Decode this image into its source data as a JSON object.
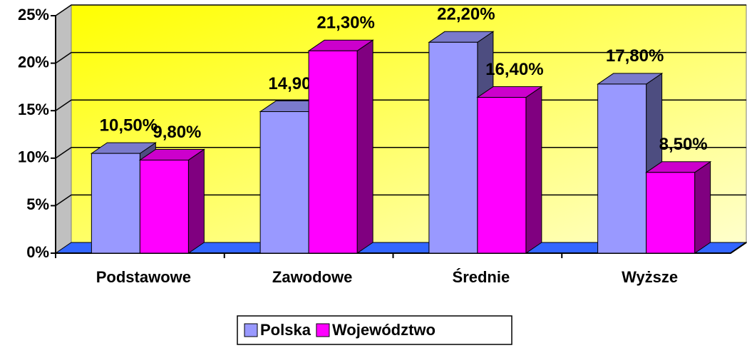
{
  "chart_data": {
    "type": "bar3d",
    "categories": [
      "Podstawowe",
      "Zawodowe",
      "Średnie",
      "Wyższe"
    ],
    "series": [
      {
        "name": "Polska",
        "color": "#9999ff",
        "values": [
          10.5,
          14.9,
          22.2,
          17.8
        ],
        "value_labels": [
          "10,50%",
          "14,90%",
          "22,20%",
          "17,80%"
        ]
      },
      {
        "name": "Województwo",
        "color": "#ff00ff",
        "values": [
          9.8,
          21.3,
          16.4,
          8.5
        ],
        "value_labels": [
          "9,80%",
          "21,30%",
          "16,40%",
          "8,50%"
        ]
      }
    ],
    "ylim": [
      0,
      25
    ],
    "yticks": [
      {
        "value": 0,
        "label": "0%"
      },
      {
        "value": 5,
        "label": "5%"
      },
      {
        "value": 10,
        "label": "10%"
      },
      {
        "value": 15,
        "label": "15%"
      },
      {
        "value": 20,
        "label": "20%"
      },
      {
        "value": 25,
        "label": "25%"
      }
    ],
    "grid": true,
    "legend": "bottom"
  }
}
